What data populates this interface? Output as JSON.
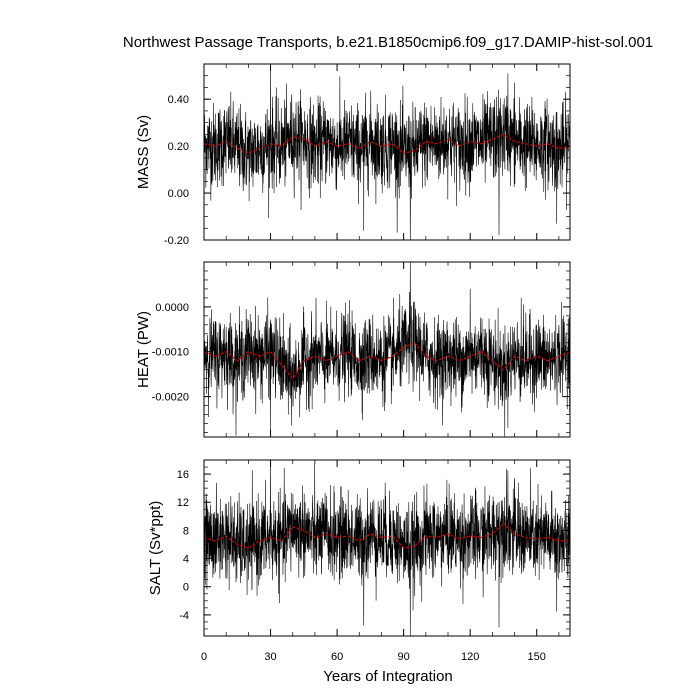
{
  "chart_data": {
    "type": "line",
    "title": "Northwest Passage Transports, b.e21.B1850cmip6.f09_g17.DAMIP-hist-sol.001",
    "xlabel": "Years of Integration",
    "xlim": [
      0,
      165
    ],
    "x_ticks": [
      0,
      30,
      60,
      90,
      120,
      150
    ],
    "x_tick_labels": [
      "0",
      "30",
      "60",
      "90",
      "120",
      "150"
    ],
    "colors": {
      "raw": "#000000",
      "smoothed": "#cc0000"
    },
    "panels": [
      {
        "ylabel": "MASS (Sv)",
        "ylim": [
          -0.2,
          0.55
        ],
        "yticks": [
          -0.2,
          0.0,
          0.2,
          0.4
        ],
        "ytick_labels": [
          "-0.20",
          "0.00",
          "0.20",
          "0.40"
        ],
        "minor_step": 0.05,
        "mean": 0.2,
        "noise": 0.09,
        "smooth_points": [
          [
            0,
            0.21
          ],
          [
            5,
            0.2
          ],
          [
            10,
            0.22
          ],
          [
            15,
            0.19
          ],
          [
            20,
            0.17
          ],
          [
            25,
            0.19
          ],
          [
            30,
            0.21
          ],
          [
            35,
            0.2
          ],
          [
            40,
            0.24
          ],
          [
            45,
            0.23
          ],
          [
            50,
            0.2
          ],
          [
            55,
            0.22
          ],
          [
            60,
            0.2
          ],
          [
            65,
            0.21
          ],
          [
            70,
            0.19
          ],
          [
            75,
            0.22
          ],
          [
            80,
            0.2
          ],
          [
            85,
            0.21
          ],
          [
            90,
            0.17
          ],
          [
            95,
            0.18
          ],
          [
            100,
            0.22
          ],
          [
            105,
            0.21
          ],
          [
            110,
            0.23
          ],
          [
            115,
            0.2
          ],
          [
            120,
            0.22
          ],
          [
            125,
            0.21
          ],
          [
            130,
            0.23
          ],
          [
            135,
            0.25
          ],
          [
            140,
            0.22
          ],
          [
            145,
            0.21
          ],
          [
            150,
            0.2
          ],
          [
            155,
            0.21
          ],
          [
            160,
            0.19
          ],
          [
            165,
            0.2
          ]
        ],
        "spikes": [
          [
            30,
            0.55
          ],
          [
            93,
            -0.21
          ],
          [
            72,
            -0.16
          ],
          [
            133,
            -0.18
          ],
          [
            137,
            0.51
          ],
          [
            140,
            0.47
          ],
          [
            159,
            -0.13
          ]
        ]
      },
      {
        "ylabel": "HEAT (PW)",
        "ylim": [
          -0.0029,
          0.001
        ],
        "yticks": [
          -0.002,
          -0.001,
          0.0
        ],
        "ytick_labels": [
          "-0.0020",
          "-0.0010",
          "0.0000"
        ],
        "minor_step": 0.0002,
        "mean": -0.0011,
        "noise": 0.00045,
        "smooth_points": [
          [
            0,
            -0.001
          ],
          [
            5,
            -0.0011
          ],
          [
            10,
            -0.001
          ],
          [
            15,
            -0.0012
          ],
          [
            20,
            -0.001
          ],
          [
            25,
            -0.0011
          ],
          [
            30,
            -0.001
          ],
          [
            35,
            -0.0013
          ],
          [
            40,
            -0.0016
          ],
          [
            45,
            -0.0012
          ],
          [
            50,
            -0.0011
          ],
          [
            55,
            -0.0012
          ],
          [
            60,
            -0.0011
          ],
          [
            65,
            -0.001
          ],
          [
            70,
            -0.0012
          ],
          [
            75,
            -0.0011
          ],
          [
            80,
            -0.0012
          ],
          [
            85,
            -0.0011
          ],
          [
            90,
            -0.0009
          ],
          [
            95,
            -0.0008
          ],
          [
            100,
            -0.0011
          ],
          [
            105,
            -0.0012
          ],
          [
            110,
            -0.0011
          ],
          [
            115,
            -0.0012
          ],
          [
            120,
            -0.0011
          ],
          [
            125,
            -0.001
          ],
          [
            130,
            -0.0012
          ],
          [
            135,
            -0.0014
          ],
          [
            140,
            -0.0011
          ],
          [
            145,
            -0.0012
          ],
          [
            150,
            -0.0011
          ],
          [
            155,
            -0.0012
          ],
          [
            160,
            -0.0011
          ],
          [
            165,
            -0.001
          ]
        ],
        "spikes": [
          [
            30,
            -0.0029
          ],
          [
            93,
            0.001
          ],
          [
            120,
            0.0004
          ],
          [
            137,
            -0.0027
          ],
          [
            143,
            0.0002
          ],
          [
            38,
            -0.0024
          ]
        ]
      },
      {
        "ylabel": "SALT (Sv*ppt)",
        "ylim": [
          -7,
          18
        ],
        "yticks": [
          -4,
          0,
          4,
          8,
          12,
          16
        ],
        "ytick_labels": [
          "-4",
          "0",
          "4",
          "8",
          "12",
          "16"
        ],
        "minor_step": 1,
        "mean": 7,
        "noise": 3.0,
        "smooth_points": [
          [
            0,
            7
          ],
          [
            5,
            6.5
          ],
          [
            10,
            7.2
          ],
          [
            15,
            6
          ],
          [
            20,
            5.5
          ],
          [
            25,
            6.5
          ],
          [
            30,
            7
          ],
          [
            35,
            6.5
          ],
          [
            40,
            8.5
          ],
          [
            45,
            8
          ],
          [
            50,
            7
          ],
          [
            55,
            7.5
          ],
          [
            60,
            7
          ],
          [
            65,
            7.2
          ],
          [
            70,
            6.5
          ],
          [
            75,
            7.5
          ],
          [
            80,
            7
          ],
          [
            85,
            7.2
          ],
          [
            90,
            5.5
          ],
          [
            95,
            5.8
          ],
          [
            100,
            7.2
          ],
          [
            105,
            7
          ],
          [
            110,
            7.5
          ],
          [
            115,
            6.8
          ],
          [
            120,
            7.2
          ],
          [
            125,
            7
          ],
          [
            130,
            7.5
          ],
          [
            135,
            9
          ],
          [
            140,
            7.5
          ],
          [
            145,
            7
          ],
          [
            150,
            6.8
          ],
          [
            155,
            7
          ],
          [
            160,
            6.5
          ],
          [
            165,
            6.5
          ]
        ],
        "spikes": [
          [
            30,
            18
          ],
          [
            93,
            -7
          ],
          [
            72,
            -5.5
          ],
          [
            133,
            -5.8
          ],
          [
            137,
            16.5
          ],
          [
            140,
            15
          ],
          [
            159,
            -3.5
          ]
        ]
      }
    ]
  }
}
